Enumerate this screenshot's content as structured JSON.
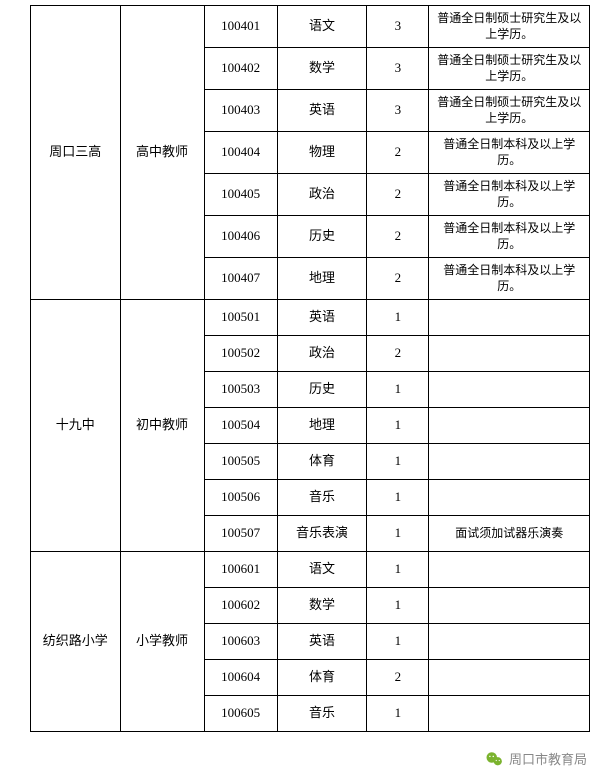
{
  "groups": [
    {
      "school": "周口三高",
      "role": "高中教师",
      "rowClass": "row-h",
      "rows": [
        {
          "code": "100401",
          "subject": "语文",
          "count": "3",
          "remark": "普通全日制硕士研究生及以上学历。"
        },
        {
          "code": "100402",
          "subject": "数学",
          "count": "3",
          "remark": "普通全日制硕士研究生及以上学历。"
        },
        {
          "code": "100403",
          "subject": "英语",
          "count": "3",
          "remark": "普通全日制硕士研究生及以上学历。"
        },
        {
          "code": "100404",
          "subject": "物理",
          "count": "2",
          "remark": "普通全日制本科及以上学历。"
        },
        {
          "code": "100405",
          "subject": "政治",
          "count": "2",
          "remark": "普通全日制本科及以上学历。"
        },
        {
          "code": "100406",
          "subject": "历史",
          "count": "2",
          "remark": "普通全日制本科及以上学历。"
        },
        {
          "code": "100407",
          "subject": "地理",
          "count": "2",
          "remark": "普通全日制本科及以上学历。"
        }
      ]
    },
    {
      "school": "十九中",
      "role": "初中教师",
      "rowClass": "row-h-sm",
      "rows": [
        {
          "code": "100501",
          "subject": "英语",
          "count": "1",
          "remark": ""
        },
        {
          "code": "100502",
          "subject": "政治",
          "count": "2",
          "remark": ""
        },
        {
          "code": "100503",
          "subject": "历史",
          "count": "1",
          "remark": ""
        },
        {
          "code": "100504",
          "subject": "地理",
          "count": "1",
          "remark": ""
        },
        {
          "code": "100505",
          "subject": "体育",
          "count": "1",
          "remark": ""
        },
        {
          "code": "100506",
          "subject": "音乐",
          "count": "1",
          "remark": ""
        },
        {
          "code": "100507",
          "subject": "音乐表演",
          "count": "1",
          "remark": "面试须加试器乐演奏"
        }
      ]
    },
    {
      "school": "纺织路小学",
      "role": "小学教师",
      "rowClass": "row-h-sm",
      "rows": [
        {
          "code": "100601",
          "subject": "语文",
          "count": "1",
          "remark": ""
        },
        {
          "code": "100602",
          "subject": "数学",
          "count": "1",
          "remark": ""
        },
        {
          "code": "100603",
          "subject": "英语",
          "count": "1",
          "remark": ""
        },
        {
          "code": "100604",
          "subject": "体育",
          "count": "2",
          "remark": ""
        },
        {
          "code": "100605",
          "subject": "音乐",
          "count": "1",
          "remark": ""
        }
      ]
    }
  ],
  "footer": {
    "source": "周口市教育局"
  },
  "colors": {
    "border": "#000000",
    "text": "#000000",
    "footer_text": "#888888",
    "wx_green": "#7bb32e",
    "bg": "#ffffff"
  }
}
